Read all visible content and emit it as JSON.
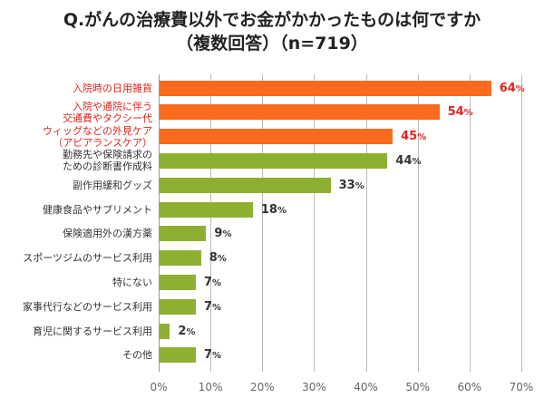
{
  "chart_data": {
    "type": "bar",
    "orientation": "horizontal",
    "title": "Q.がんの治療費以外でお金がかかったものは何ですか",
    "subtitle": "（複数回答）（n=719）",
    "categories": [
      "入院時の日用雑貨",
      "入院や通院に伴う\n交通費やタクシー代",
      "ウィッグなどの外見ケア\n（アピアランスケア）",
      "勤務先や保険請求の\nための診断書作成料",
      "副作用緩和グッズ",
      "健康食品やサプリメント",
      "保険適用外の漢方薬",
      "スポーツジムのサービス利用",
      "特にない",
      "家事代行などのサービス利用",
      "育児に関するサービス利用",
      "その他"
    ],
    "values": [
      64,
      54,
      45,
      44,
      33,
      18,
      9,
      8,
      7,
      7,
      2,
      7
    ],
    "unit": "%",
    "highlighted_top": 3,
    "xlim": [
      0,
      70
    ],
    "xticks": [
      "0%",
      "10%",
      "20%",
      "30%",
      "40%",
      "50%",
      "60%",
      "70%"
    ],
    "grid": true,
    "colors": {
      "highlight_bar": "#f96b1e",
      "bar": "#8db032",
      "highlight_text": "#e2231a",
      "text": "#333333"
    }
  }
}
